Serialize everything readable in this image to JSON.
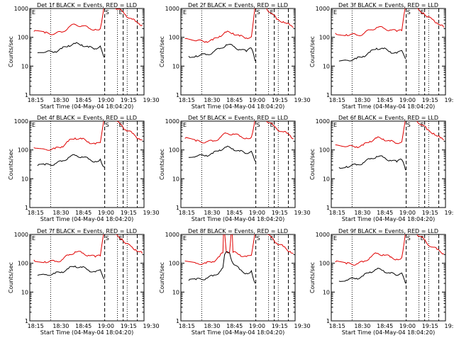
{
  "figure": {
    "x_axis_label": "Start Time (04-May-04 18:04:20)",
    "y_axis_label": "Counts/sec",
    "y_ticks": [
      "1",
      "10",
      "100",
      "1000"
    ],
    "event_markers": [
      "S",
      "E"
    ]
  },
  "chart_data": [
    {
      "type": "line",
      "title": "Det 1f BLACK = Events, RED = LLD",
      "x_ticks": [
        "18:15",
        "18:30",
        "18:45",
        "19:00",
        "19:15",
        "19:30"
      ],
      "yscale": "log",
      "ylim": [
        1,
        1000
      ],
      "series": [
        {
          "name": "LLD",
          "color": "#e00000",
          "x": [
            -0.3,
            3,
            6,
            8,
            10,
            12,
            14,
            16,
            18,
            19.5,
            20.6
          ],
          "y": [
            160,
            140,
            135,
            150,
            220,
            280,
            250,
            210,
            190,
            200,
            1200
          ]
        },
        {
          "name": "Events",
          "color": "#000000",
          "x": [
            0.8,
            3,
            6,
            8,
            10,
            12,
            14,
            16,
            18,
            19.5,
            20.6
          ],
          "y": [
            29,
            30,
            32,
            40,
            52,
            60,
            55,
            45,
            40,
            50,
            20
          ]
        },
        {
          "name": "LLD",
          "color": "#e00000",
          "x": [
            24,
            26,
            27,
            29,
            30,
            31,
            32
          ],
          "y": [
            1000,
            800,
            600,
            420,
            350,
            300,
            270
          ]
        }
      ],
      "vlines_dotted": [
        4.7,
        24.6,
        27.5
      ],
      "vlines_dashed": [
        20.8,
        26.3,
        30.5
      ]
    },
    {
      "type": "line",
      "title": "Det 2f BLACK = Events, RED = LLD",
      "x_ticks": [
        "18:15",
        "18:30",
        "18:45",
        "19:00",
        "19:15",
        "19:30"
      ],
      "yscale": "log",
      "ylim": [
        1,
        1000
      ],
      "series": [
        {
          "name": "LLD",
          "color": "#e00000",
          "x": [
            -0.3,
            3,
            6,
            8,
            10,
            12,
            14,
            16,
            18,
            19.5,
            20.6
          ],
          "y": [
            90,
            75,
            72,
            80,
            110,
            150,
            140,
            110,
            95,
            105,
            1200
          ]
        },
        {
          "name": "Events",
          "color": "#000000",
          "x": [
            0.8,
            3,
            6,
            8,
            10,
            12,
            14,
            16,
            18,
            19.5,
            20.6
          ],
          "y": [
            22,
            23,
            25,
            30,
            40,
            55,
            50,
            38,
            32,
            42,
            15
          ]
        },
        {
          "name": "LLD",
          "color": "#e00000",
          "x": [
            24,
            26,
            27,
            29,
            30,
            31,
            32
          ],
          "y": [
            1000,
            600,
            420,
            350,
            300,
            260,
            220
          ]
        }
      ],
      "vlines_dotted": [
        4.7,
        24.6,
        27.5
      ],
      "vlines_dashed": [
        20.8,
        26.3,
        30.5
      ]
    },
    {
      "type": "line",
      "title": "Det 3f BLACK = Events, RED = LLD",
      "x_ticks": [
        "18:15",
        "18:30",
        "18:45",
        "19:00",
        "19:15",
        "19:30"
      ],
      "yscale": "log",
      "ylim": [
        1,
        1000
      ],
      "series": [
        {
          "name": "LLD",
          "color": "#e00000",
          "x": [
            -0.3,
            3,
            6,
            8,
            10,
            12,
            14,
            16,
            18,
            19.5,
            20.6
          ],
          "y": [
            140,
            125,
            120,
            130,
            180,
            220,
            210,
            180,
            160,
            170,
            1200
          ]
        },
        {
          "name": "Events",
          "color": "#000000",
          "x": [
            0.8,
            3,
            6,
            8,
            10,
            12,
            14,
            16,
            18,
            19.5,
            20.6
          ],
          "y": [
            15,
            16,
            18,
            22,
            30,
            42,
            40,
            32,
            28,
            35,
            18
          ]
        },
        {
          "name": "LLD",
          "color": "#e00000",
          "x": [
            24,
            26,
            27,
            29,
            30,
            31,
            32
          ],
          "y": [
            1000,
            700,
            500,
            400,
            320,
            260,
            220
          ]
        }
      ],
      "vlines_dotted": [
        4.7,
        24.6,
        27.5
      ],
      "vlines_dashed": [
        20.8,
        26.3,
        30.5
      ]
    },
    {
      "type": "line",
      "title": "Det 4f BLACK = Events, RED = LLD",
      "x_ticks": [
        "18:15",
        "18:30",
        "18:45",
        "19:00",
        "19:15",
        "19:30"
      ],
      "yscale": "log",
      "ylim": [
        1,
        1000
      ],
      "series": [
        {
          "name": "LLD",
          "color": "#e00000",
          "x": [
            -0.3,
            3,
            6,
            8,
            10,
            12,
            14,
            16,
            18,
            19.5,
            20.6
          ],
          "y": [
            120,
            105,
            110,
            130,
            200,
            260,
            240,
            190,
            160,
            180,
            1200
          ]
        },
        {
          "name": "Events",
          "color": "#000000",
          "x": [
            0.8,
            3,
            6,
            8,
            10,
            12,
            14,
            16,
            18,
            19.5,
            20.6
          ],
          "y": [
            28,
            30,
            33,
            40,
            55,
            65,
            58,
            48,
            40,
            48,
            25
          ]
        },
        {
          "name": "LLD",
          "color": "#e00000",
          "x": [
            24,
            26,
            27,
            29,
            30,
            31,
            32
          ],
          "y": [
            1000,
            700,
            500,
            380,
            300,
            250,
            220
          ]
        }
      ],
      "vlines_dotted": [
        4.7,
        24.6,
        27.5
      ],
      "vlines_dashed": [
        20.8,
        26.3,
        30.5
      ]
    },
    {
      "type": "line",
      "title": "Det 5f BLACK = Events, RED = LLD",
      "x_ticks": [
        "18:15",
        "18:30",
        "18:45",
        "19:00",
        "19:15",
        "19:30"
      ],
      "yscale": "log",
      "ylim": [
        1,
        1000
      ],
      "series": [
        {
          "name": "LLD",
          "color": "#e00000",
          "x": [
            -0.3,
            3,
            6,
            8,
            10,
            12,
            14,
            16,
            18,
            19.5,
            20.6
          ],
          "y": [
            250,
            200,
            190,
            200,
            260,
            380,
            360,
            300,
            260,
            280,
            1200
          ]
        },
        {
          "name": "Events",
          "color": "#000000",
          "x": [
            0.8,
            3,
            6,
            8,
            10,
            12,
            14,
            16,
            18,
            19.5,
            20.6
          ],
          "y": [
            55,
            60,
            65,
            75,
            100,
            125,
            110,
            90,
            75,
            90,
            40
          ]
        },
        {
          "name": "LLD",
          "color": "#e00000",
          "x": [
            24,
            26,
            27,
            29,
            30,
            31,
            32
          ],
          "y": [
            1000,
            700,
            550,
            420,
            380,
            320,
            250
          ]
        }
      ],
      "vlines_dotted": [
        4.7,
        24.6,
        27.5
      ],
      "vlines_dashed": [
        20.8,
        26.3,
        30.5
      ]
    },
    {
      "type": "line",
      "title": "Det 6f BLACK = Events, RED = LLD",
      "x_ticks": [
        "18:15",
        "18:30",
        "18:45",
        "19:00",
        "19:15",
        "19:30"
      ],
      "yscale": "log",
      "ylim": [
        1,
        1000
      ],
      "series": [
        {
          "name": "LLD",
          "color": "#e00000",
          "x": [
            -0.3,
            3,
            6,
            8,
            10,
            12,
            14,
            16,
            18,
            19.5,
            20.6
          ],
          "y": [
            150,
            130,
            130,
            145,
            200,
            260,
            240,
            200,
            170,
            190,
            1200
          ]
        },
        {
          "name": "Events",
          "color": "#000000",
          "x": [
            0.8,
            3,
            6,
            8,
            10,
            12,
            14,
            16,
            18,
            19.5,
            20.6
          ],
          "y": [
            25,
            27,
            30,
            36,
            48,
            60,
            55,
            44,
            38,
            46,
            20
          ]
        },
        {
          "name": "LLD",
          "color": "#e00000",
          "x": [
            24,
            26,
            27,
            29,
            30,
            31,
            32
          ],
          "y": [
            1000,
            700,
            500,
            380,
            300,
            260,
            220
          ]
        }
      ],
      "vlines_dotted": [
        4.7,
        24.6,
        27.5
      ],
      "vlines_dashed": [
        20.8,
        26.3,
        30.5
      ]
    },
    {
      "type": "line",
      "title": "Det 7f BLACK = Events, RED = LLD",
      "x_ticks": [
        "18:15",
        "18:30",
        "18:45",
        "19:00",
        "19:15",
        "19:30"
      ],
      "yscale": "log",
      "ylim": [
        1,
        1000
      ],
      "series": [
        {
          "name": "LLD",
          "color": "#e00000",
          "x": [
            -0.3,
            3,
            6,
            8,
            10,
            12,
            14,
            16,
            18,
            19.5,
            20.6
          ],
          "y": [
            130,
            115,
            115,
            130,
            190,
            250,
            230,
            190,
            165,
            180,
            1200
          ]
        },
        {
          "name": "Events",
          "color": "#000000",
          "x": [
            0.8,
            3,
            6,
            8,
            10,
            12,
            14,
            16,
            18,
            19.5,
            20.6
          ],
          "y": [
            38,
            40,
            44,
            50,
            65,
            80,
            72,
            58,
            50,
            60,
            28
          ]
        },
        {
          "name": "LLD",
          "color": "#e00000",
          "x": [
            24,
            26,
            27,
            29,
            30,
            31,
            32
          ],
          "y": [
            1000,
            700,
            480,
            360,
            300,
            250,
            220
          ]
        }
      ],
      "vlines_dotted": [
        4.7,
        24.6,
        27.5
      ],
      "vlines_dashed": [
        20.8,
        26.3,
        30.5
      ]
    },
    {
      "type": "line",
      "title": "Det 8f BLACK = Events, RED = LLD",
      "x_ticks": [
        "18:15",
        "18:30",
        "18:45",
        "19:00",
        "19:15",
        "19:30"
      ],
      "yscale": "log",
      "ylim": [
        1,
        1000
      ],
      "series": [
        {
          "name": "LLD",
          "color": "#e00000",
          "x": [
            -0.3,
            3,
            6,
            8,
            10,
            11,
            11.2,
            11.5,
            12,
            13,
            13.5,
            13.8,
            14,
            16,
            18,
            19.5,
            20.6
          ],
          "y": [
            120,
            100,
            100,
            115,
            170,
            230,
            1200,
            1200,
            260,
            250,
            1200,
            1200,
            240,
            200,
            170,
            190,
            1200
          ]
        },
        {
          "name": "Events",
          "color": "#000000",
          "x": [
            0.8,
            3,
            6,
            8,
            10,
            11,
            11.5,
            12,
            13,
            14,
            16,
            18,
            19.5,
            20.6
          ],
          "y": [
            25,
            27,
            30,
            36,
            50,
            70,
            200,
            250,
            230,
            100,
            60,
            45,
            55,
            20
          ]
        },
        {
          "name": "LLD",
          "color": "#e00000",
          "x": [
            24,
            26,
            27,
            29,
            30,
            31,
            32
          ],
          "y": [
            1000,
            700,
            500,
            380,
            300,
            260,
            220
          ]
        }
      ],
      "vlines_dotted": [
        4.7,
        24.6,
        27.5
      ],
      "vlines_dashed": [
        20.8,
        26.3,
        30.5
      ]
    },
    {
      "type": "line",
      "title": "Det 9f BLACK = Events, RED = LLD",
      "x_ticks": [
        "18:15",
        "18:30",
        "18:45",
        "19:00",
        "19:15",
        "19:30"
      ],
      "yscale": "log",
      "ylim": [
        1,
        1000
      ],
      "series": [
        {
          "name": "LLD",
          "color": "#e00000",
          "x": [
            -0.3,
            3,
            6,
            8,
            10,
            12,
            14,
            16,
            18,
            19.5,
            20.6
          ],
          "y": [
            110,
            95,
            95,
            110,
            160,
            220,
            200,
            165,
            140,
            160,
            1200
          ]
        },
        {
          "name": "Events",
          "color": "#000000",
          "x": [
            0.8,
            3,
            6,
            8,
            10,
            12,
            14,
            16,
            18,
            19.5,
            20.6
          ],
          "y": [
            24,
            26,
            30,
            36,
            50,
            62,
            56,
            45,
            38,
            46,
            20
          ]
        },
        {
          "name": "LLD",
          "color": "#e00000",
          "x": [
            24,
            26,
            27,
            29,
            30,
            31,
            32
          ],
          "y": [
            1000,
            700,
            480,
            360,
            300,
            250,
            220
          ]
        }
      ],
      "vlines_dotted": [
        4.7,
        24.6,
        27.5
      ],
      "vlines_dashed": [
        20.8,
        26.3,
        30.5
      ]
    }
  ]
}
